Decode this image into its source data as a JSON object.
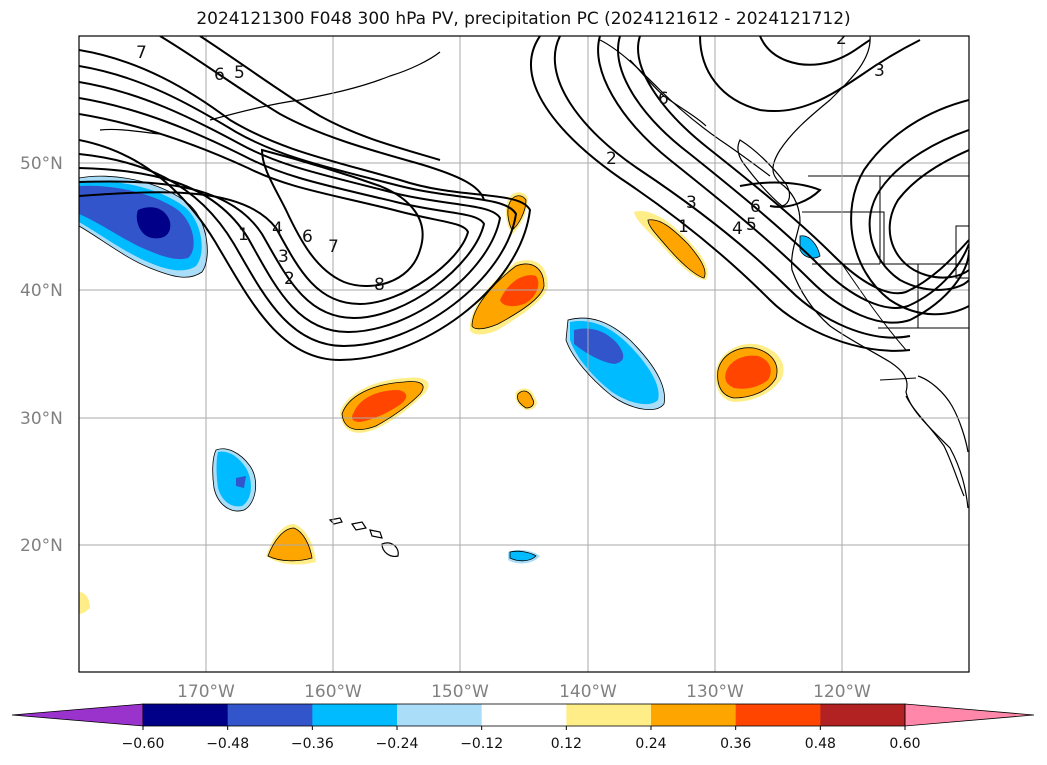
{
  "title": "2024121300 F048 300 hPa PV, precipitation PC (2024121612 - 2024121712)",
  "lat_labels": [
    "50°N",
    "40°N",
    "30°N",
    "20°N"
  ],
  "lon_labels": [
    "170°W",
    "160°W",
    "150°W",
    "140°W",
    "130°W",
    "120°W"
  ],
  "colorbar": {
    "ticks": [
      "−0.60",
      "−0.48",
      "−0.36",
      "−0.24",
      "−0.12",
      "0.12",
      "0.24",
      "0.36",
      "0.48",
      "0.60"
    ],
    "colors": [
      "#9933cc",
      "#000088",
      "#3355cc",
      "#00bbff",
      "#aaddf8",
      "#ffffff",
      "#ffee88",
      "#ffa500",
      "#ff4500",
      "#b22222",
      "#ff88aa"
    ]
  },
  "pv_contour_labels": [
    "7",
    "6",
    "5",
    "1",
    "4",
    "3",
    "2",
    "6",
    "7",
    "8",
    "2",
    "3",
    "1",
    "4",
    "5",
    "6",
    "3",
    "2",
    "6"
  ]
}
